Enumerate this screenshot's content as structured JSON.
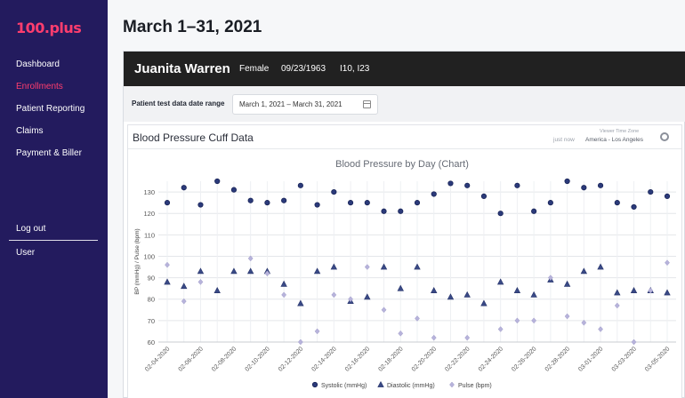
{
  "app": {
    "logo": "100.plus"
  },
  "sidebar": {
    "items": [
      {
        "label": "Dashboard",
        "active": false
      },
      {
        "label": "Enrollments",
        "active": true
      },
      {
        "label": "Patient Reporting",
        "active": false
      },
      {
        "label": "Claims",
        "active": false
      },
      {
        "label": "Payment & Biller",
        "active": false
      }
    ],
    "logout": "Log out",
    "user": "User"
  },
  "page": {
    "title": "March 1–31, 2021"
  },
  "patient": {
    "name": "Juanita Warren",
    "sex": "Female",
    "dob": "09/23/1963",
    "codes": "I10, I23"
  },
  "date_range": {
    "label": "Patient test data date range",
    "value": "March 1, 2021 – March 31, 2021"
  },
  "panel": {
    "title": "Blood Pressure Cuff Data",
    "timezone_label": "Viewer Time Zone",
    "last_update": "just now",
    "timezone": "America - Los Angeles"
  },
  "colors": {
    "sidebar": "#231b5e",
    "accent": "#ff3d6e",
    "systolic": "#2b3a7a",
    "diastolic": "#3a4a86",
    "pulse": "#b3b0d6"
  },
  "chart_data": {
    "type": "scatter",
    "title": "Blood Pressure by Day (Chart)",
    "ylabel": "BP (mmHg) / Pulse (bpm)",
    "xlabel": "",
    "ylim": [
      60,
      135
    ],
    "yticks": [
      60,
      70,
      80,
      90,
      100,
      110,
      120,
      130
    ],
    "xtick_labels": [
      "02-04-2020",
      "02-06-2020",
      "02-08-2020",
      "02-10-2020",
      "02-12-2020",
      "02-14-2020",
      "02-16-2020",
      "02-18-2020",
      "02-20-2020",
      "02-22-2020",
      "02-24-2020",
      "02-26-2020",
      "02-28-2020",
      "03-01-2020",
      "03-03-2020",
      "03-05-2020"
    ],
    "x": [
      "02-04-2020",
      "02-05-2020",
      "02-06-2020",
      "02-07-2020",
      "02-08-2020",
      "02-09-2020",
      "02-10-2020",
      "02-11-2020",
      "02-12-2020",
      "02-13-2020",
      "02-14-2020",
      "02-15-2020",
      "02-16-2020",
      "02-17-2020",
      "02-18-2020",
      "02-19-2020",
      "02-20-2020",
      "02-21-2020",
      "02-22-2020",
      "02-23-2020",
      "02-24-2020",
      "02-25-2020",
      "02-26-2020",
      "02-27-2020",
      "02-28-2020",
      "02-29-2020",
      "03-01-2020",
      "03-02-2020",
      "03-03-2020",
      "03-04-2020",
      "03-05-2020"
    ],
    "series": [
      {
        "name": "Systolic (mmHg)",
        "marker": "circle",
        "values": [
          125,
          132,
          124,
          135,
          131,
          126,
          125,
          126,
          133,
          124,
          130,
          125,
          125,
          121,
          121,
          125,
          129,
          134,
          133,
          128,
          120,
          133,
          121,
          125,
          135,
          132,
          133,
          125,
          123,
          130,
          128
        ]
      },
      {
        "name": "Diastolic (mmHg)",
        "marker": "triangle",
        "values": [
          88,
          86,
          93,
          84,
          93,
          93,
          93,
          87,
          78,
          93,
          95,
          79,
          81,
          95,
          85,
          95,
          84,
          81,
          82,
          78,
          88,
          84,
          82,
          89,
          87,
          93,
          95,
          83,
          84,
          84,
          83
        ]
      },
      {
        "name": "Pulse (bpm)",
        "marker": "diamond",
        "values": [
          96,
          79,
          88,
          null,
          null,
          99,
          92,
          82,
          60,
          65,
          82,
          80,
          95,
          75,
          64,
          71,
          62,
          null,
          62,
          null,
          66,
          70,
          70,
          90,
          72,
          69,
          66,
          77,
          60,
          84,
          97
        ]
      }
    ],
    "legend_position": "bottom",
    "grid": true
  }
}
